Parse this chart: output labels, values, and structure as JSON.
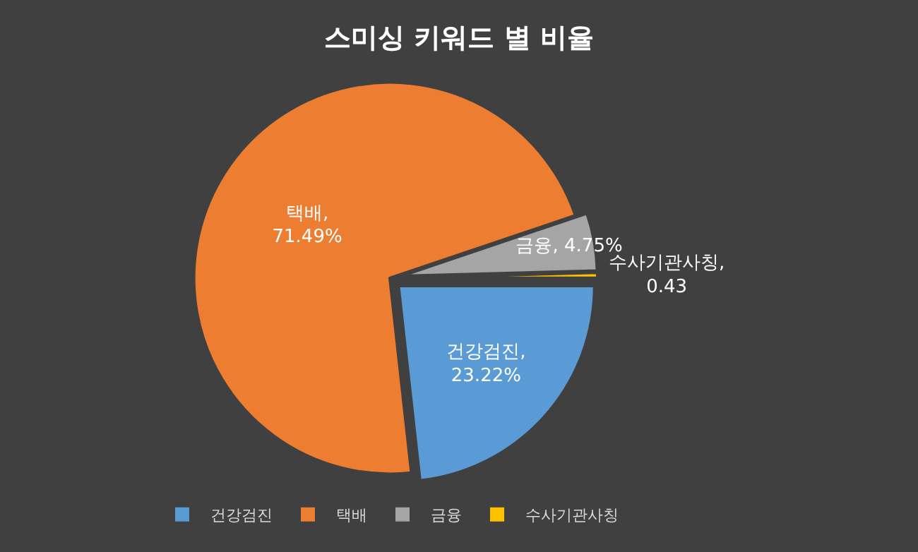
{
  "chart_data": {
    "type": "pie",
    "title": "스미싱 키워드 별 비율",
    "categories": [
      "건강검진",
      "택배",
      "금융",
      "수사기관사칭"
    ],
    "values": [
      23.22,
      71.49,
      4.75,
      0.43
    ],
    "colors": [
      "#5b9bd5",
      "#ed7d31",
      "#a5a5a5",
      "#ffc000"
    ],
    "value_labels": [
      "건강검진,\n23.22%",
      "택배,\n71.49%",
      "금융, 4.75%",
      "수사기관사칭,\n0.43"
    ],
    "legend": "bottom"
  }
}
